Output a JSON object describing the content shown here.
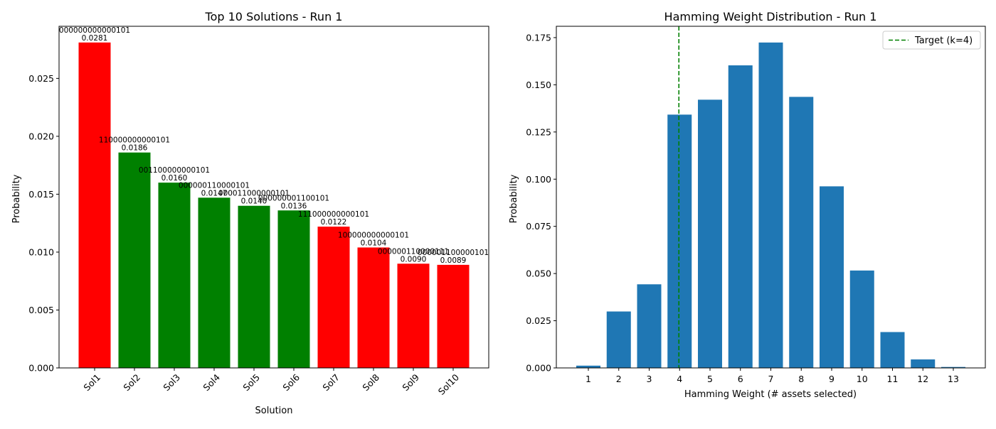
{
  "chart_data": [
    {
      "type": "bar",
      "title": "Top 10 Solutions - Run 1",
      "xlabel": "Solution",
      "ylabel": "Probability",
      "categories": [
        "Sol1",
        "Sol2",
        "Sol3",
        "Sol4",
        "Sol5",
        "Sol6",
        "Sol7",
        "Sol8",
        "Sol9",
        "Sol10"
      ],
      "values": [
        0.0281,
        0.0186,
        0.016,
        0.0147,
        0.014,
        0.0136,
        0.0122,
        0.0104,
        0.009,
        0.0089
      ],
      "value_labels": [
        "0.0281",
        "0.0186",
        "0.0160",
        "0.0147",
        "0.0140",
        "0.0136",
        "0.0122",
        "0.0104",
        "0.0090",
        "0.0089"
      ],
      "bitstrings": [
        "000000000000101",
        "110000000000101",
        "001100000000101",
        "000000110000101",
        "000011000000101",
        "000000001100101",
        "111000000000101",
        "100000000000101",
        "000000110000111",
        "000001100000101"
      ],
      "colors": [
        "#ff0000",
        "#008000",
        "#008000",
        "#008000",
        "#008000",
        "#008000",
        "#ff0000",
        "#ff0000",
        "#ff0000",
        "#ff0000"
      ],
      "ylim": [
        0,
        0.0295
      ],
      "yticks": [
        "0.000",
        "0.005",
        "0.010",
        "0.015",
        "0.020",
        "0.025"
      ],
      "grid": false
    },
    {
      "type": "bar",
      "title": "Hamming Weight Distribution - Run 1",
      "xlabel": "Hamming Weight (# assets selected)",
      "ylabel": "Probability",
      "categories": [
        "1",
        "2",
        "3",
        "4",
        "5",
        "6",
        "7",
        "8",
        "9",
        "10",
        "11",
        "12",
        "13"
      ],
      "values": [
        0.0012,
        0.0299,
        0.0443,
        0.1342,
        0.1421,
        0.1603,
        0.1724,
        0.1436,
        0.0962,
        0.0516,
        0.019,
        0.0045,
        0.0005
      ],
      "bar_color": "#1f77b4",
      "target_line": {
        "x": 4,
        "label": "Target (k=4)",
        "color": "#008000",
        "style": "dashed"
      },
      "legend_position": "top-right",
      "ylim": [
        0,
        0.181
      ],
      "yticks": [
        "0.000",
        "0.025",
        "0.050",
        "0.075",
        "0.100",
        "0.125",
        "0.150",
        "0.175"
      ],
      "grid": false
    }
  ]
}
